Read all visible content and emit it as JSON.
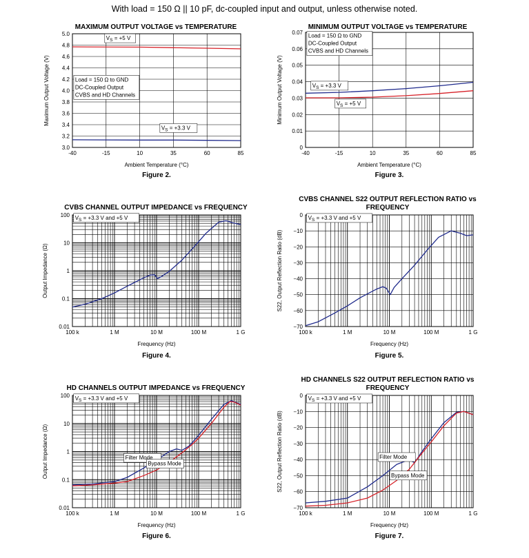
{
  "header": "With load = 150 Ω || 10 pF, dc-coupled input and output, unless otherwise noted.",
  "chart_data": [
    {
      "type": "line",
      "figure": "Figure 2.",
      "title": [
        "MAXIMUM OUTPUT VOLTAGE vs TEMPERATURE"
      ],
      "xlabel": "Ambient Temperature (°C)",
      "ylabel": "Maximum Output Voltage (V)",
      "xscale": "linear",
      "xlim": [
        -40,
        85
      ],
      "xticks": [
        -40,
        -15,
        10,
        35,
        60,
        85
      ],
      "ylim": [
        3.0,
        5.0
      ],
      "yticks": [
        3.0,
        3.2,
        3.4,
        3.6,
        3.8,
        4.0,
        4.2,
        4.4,
        4.6,
        4.8,
        5.0
      ],
      "ytick_labels": [
        "3.0",
        "3.2",
        "3.4",
        "3.6",
        "3.8",
        "4.0",
        "4.2",
        "4.4",
        "4.6",
        "4.8",
        "5.0"
      ],
      "series": [
        {
          "name": "VS = +5 V",
          "color": "#d62027",
          "x": [
            -40,
            10,
            35,
            60,
            85
          ],
          "y": [
            4.77,
            4.765,
            4.755,
            4.745,
            4.735
          ]
        },
        {
          "name": "VS = +3.3 V",
          "color": "#1f2a8c",
          "x": [
            -40,
            10,
            35,
            60,
            85
          ],
          "y": [
            3.135,
            3.13,
            3.13,
            3.125,
            3.12
          ]
        }
      ],
      "annotations": [
        {
          "lines": [
            "VS = +5 V"
          ],
          "x": -15,
          "y": 4.89
        },
        {
          "lines": [
            "Load = 150 Ω to GND",
            "DC-Coupled Output",
            "CVBS and HD Channels"
          ],
          "x": -38,
          "y": 4.16
        },
        {
          "lines": [
            "VS = +3.3 V"
          ],
          "x": 26,
          "y": 3.31
        }
      ]
    },
    {
      "type": "line",
      "figure": "Figure 3.",
      "title": [
        "MINIMUM OUTPUT VOLTAGE vs TEMPERATURE"
      ],
      "xlabel": "Ambient Temperature (°C)",
      "ylabel": "Minimum Output Voltage (V)",
      "xscale": "linear",
      "xlim": [
        -40,
        85
      ],
      "xticks": [
        -40,
        -15,
        10,
        35,
        60,
        85
      ],
      "ylim": [
        0,
        0.07
      ],
      "yticks": [
        0,
        0.01,
        0.02,
        0.03,
        0.04,
        0.05,
        0.06,
        0.07
      ],
      "ytick_labels": [
        "0",
        "0.01",
        "0.02",
        "0.03",
        "0.04",
        "0.05",
        "0.06",
        "0.07"
      ],
      "series": [
        {
          "name": "VS = +3.3 V",
          "color": "#1f2a8c",
          "x": [
            -40,
            -15,
            10,
            35,
            60,
            85
          ],
          "y": [
            0.033,
            0.0335,
            0.0345,
            0.0358,
            0.0375,
            0.0396
          ]
        },
        {
          "name": "VS = +5 V",
          "color": "#d62027",
          "x": [
            -40,
            -15,
            10,
            35,
            60,
            85
          ],
          "y": [
            0.0302,
            0.0302,
            0.0306,
            0.0315,
            0.0328,
            0.0345
          ]
        }
      ],
      "annotations": [
        {
          "lines": [
            "Load = 150 Ω to GND",
            "DC-Coupled Output",
            "CVBS and HD Channels"
          ],
          "x": -38,
          "y": 0.0668
        },
        {
          "lines": [
            "VS = +3.3 V"
          ],
          "x": -35,
          "y": 0.0365
        },
        {
          "lines": [
            "VS = +5 V"
          ],
          "x": -17,
          "y": 0.0256
        }
      ]
    },
    {
      "type": "line",
      "figure": "Figure 4.",
      "title": [
        "CVBS CHANNEL OUTPUT IMPEDANCE vs FREQUENCY"
      ],
      "xlabel": "Frequency (Hz)",
      "ylabel": "Output Impedance (Ω)",
      "xscale": "log",
      "xlim": [
        100000,
        1000000000
      ],
      "xticks": [
        100000,
        1000000,
        10000000,
        100000000,
        1000000000
      ],
      "xtick_labels": [
        "100 k",
        "1 M",
        "10 M",
        "100 M",
        "1 G"
      ],
      "yscale": "log",
      "ylim": [
        0.01,
        100
      ],
      "yticks": [
        0.01,
        0.1,
        1,
        10,
        100
      ],
      "ytick_labels": [
        "0.01",
        "0.1",
        "1",
        "10",
        "100"
      ],
      "series": [
        {
          "name": "VS = +3.3 V and +5 V",
          "color": "#1f2a8c",
          "x": [
            100000,
            200000,
            500000,
            1000000,
            2000000,
            3000000,
            5000000,
            7000000,
            9000000,
            10500000,
            13000000,
            20000000,
            40000000,
            80000000,
            150000000,
            300000000,
            450000000,
            650000000,
            1000000000
          ],
          "y": [
            0.05,
            0.063,
            0.1,
            0.16,
            0.28,
            0.38,
            0.56,
            0.7,
            0.72,
            0.52,
            0.62,
            0.95,
            2.4,
            7.5,
            22,
            55,
            62,
            52,
            45
          ]
        }
      ],
      "annotations": [
        {
          "lines": [
            "VS = +3.3 V and +5 V"
          ],
          "x": 115000,
          "y": 68
        }
      ]
    },
    {
      "type": "line",
      "figure": "Figure 5.",
      "title": [
        "CVBS CHANNEL S22 OUTPUT REFLECTION RATIO vs",
        "FREQUENCY"
      ],
      "xlabel": "Frequency (Hz)",
      "ylabel": "S22, Output Reflection Ratio (dB)",
      "xscale": "log",
      "xlim": [
        100000,
        1000000000
      ],
      "xticks": [
        100000,
        1000000,
        10000000,
        100000000,
        1000000000
      ],
      "xtick_labels": [
        "100 k",
        "1 M",
        "10 M",
        "100 M",
        "1 G"
      ],
      "ylim": [
        -70,
        0
      ],
      "yticks": [
        -70,
        -60,
        -50,
        -40,
        -30,
        -20,
        -10,
        0
      ],
      "ytick_labels": [
        "−70",
        "−60",
        "−50",
        "−40",
        "−30",
        "−20",
        "−10",
        "0"
      ],
      "series": [
        {
          "name": "VS = +3.3 V and +5 V",
          "color": "#1f2a8c",
          "x": [
            100000,
            200000,
            500000,
            1000000,
            2000000,
            3000000,
            5000000,
            7000000,
            8500000,
            10500000,
            13000000,
            20000000,
            40000000,
            80000000,
            150000000,
            300000000,
            500000000,
            700000000,
            1000000000
          ],
          "y": [
            -69.5,
            -67,
            -61.5,
            -57,
            -52,
            -49.5,
            -46.5,
            -45,
            -46,
            -50,
            -45.5,
            -40,
            -31.5,
            -22,
            -14,
            -10,
            -11.5,
            -13,
            -12.5
          ]
        }
      ],
      "annotations": [
        {
          "lines": [
            "VS = +3.3 V and +5 V"
          ],
          "x": 115000,
          "y": -3
        }
      ]
    },
    {
      "type": "line",
      "figure": "Figure 6.",
      "title": [
        "HD CHANNELS OUTPUT IMPEDANCE vs FREQUENCY"
      ],
      "xlabel": "Frequency (Hz)",
      "ylabel": "Output Impedance (Ω)",
      "xscale": "log",
      "xlim": [
        100000,
        1000000000
      ],
      "xticks": [
        100000,
        1000000,
        10000000,
        100000000,
        1000000000
      ],
      "xtick_labels": [
        "100 k",
        "1 M",
        "10 M",
        "100 M",
        "1 G"
      ],
      "yscale": "log",
      "ylim": [
        0.01,
        100
      ],
      "yticks": [
        0.01,
        0.1,
        1,
        10,
        100
      ],
      "ytick_labels": [
        "0.01",
        "0.1",
        "1",
        "10",
        "100"
      ],
      "series": [
        {
          "name": "Filter Mode",
          "color": "#1f2a8c",
          "x": [
            100000,
            300000,
            1000000,
            2000000,
            5000000,
            10000000,
            20000000,
            30000000,
            40000000,
            60000000,
            100000000,
            200000000,
            400000000,
            600000000,
            1000000000
          ],
          "y": [
            0.065,
            0.07,
            0.085,
            0.12,
            0.26,
            0.5,
            1.0,
            1.25,
            1.1,
            1.6,
            3.8,
            14,
            48,
            65,
            48
          ]
        },
        {
          "name": "Bypass Mode",
          "color": "#d62027",
          "x": [
            100000,
            300000,
            1000000,
            2000000,
            5000000,
            10000000,
            20000000,
            40000000,
            70000000,
            100000000,
            200000000,
            400000000,
            550000000,
            700000000,
            1000000000
          ],
          "y": [
            0.06,
            0.065,
            0.075,
            0.085,
            0.14,
            0.22,
            0.42,
            0.9,
            1.8,
            3.0,
            10,
            38,
            60,
            58,
            45
          ]
        }
      ],
      "annotations": [
        {
          "lines": [
            "VS = +3.3 V and +5 V"
          ],
          "x": 115000,
          "y": 68
        },
        {
          "lines": [
            "Filter Mode"
          ],
          "x": 1800000,
          "y": 0.52
        },
        {
          "lines": [
            "Bypass Mode"
          ],
          "x": 6200000,
          "y": 0.32
        }
      ]
    },
    {
      "type": "line",
      "figure": "Figure 7.",
      "title": [
        "HD CHANNELS S22 OUTPUT REFLECTION RATIO vs",
        "FREQUENCY"
      ],
      "xlabel": "Frequency (Hz)",
      "ylabel": "S22, Output Reflection Ratio (dB)",
      "xscale": "log",
      "xlim": [
        100000,
        1000000000
      ],
      "xticks": [
        100000,
        1000000,
        10000000,
        100000000,
        1000000000
      ],
      "xtick_labels": [
        "100 k",
        "1 M",
        "10 M",
        "100 M",
        "1 G"
      ],
      "ylim": [
        -70,
        0
      ],
      "yticks": [
        -70,
        -60,
        -50,
        -40,
        -30,
        -20,
        -10,
        0
      ],
      "ytick_labels": [
        "−70",
        "−60",
        "−50",
        "−40",
        "−30",
        "−20",
        "−10",
        "0"
      ],
      "series": [
        {
          "name": "Filter Mode",
          "color": "#1f2a8c",
          "x": [
            100000,
            300000,
            1000000,
            3000000,
            7000000,
            15000000,
            30000000,
            40000000,
            60000000,
            100000000,
            200000000,
            400000000,
            600000000,
            1000000000
          ],
          "y": [
            -67,
            -66,
            -64,
            -57,
            -50,
            -43,
            -40,
            -42,
            -35,
            -27,
            -17,
            -10.5,
            -10,
            -12
          ]
        },
        {
          "name": "Bypass Mode",
          "color": "#d62027",
          "x": [
            100000,
            300000,
            1000000,
            3000000,
            7000000,
            15000000,
            30000000,
            60000000,
            100000000,
            200000000,
            400000000,
            600000000,
            1000000000
          ],
          "y": [
            -69,
            -68.5,
            -67,
            -64,
            -59,
            -53,
            -46,
            -36,
            -29,
            -19,
            -11,
            -10,
            -12
          ]
        }
      ],
      "annotations": [
        {
          "lines": [
            "VS = +3.3 V and +5 V"
          ],
          "x": 115000,
          "y": -3
        },
        {
          "lines": [
            "Filter Mode"
          ],
          "x": 5800000,
          "y": -39.5
        },
        {
          "lines": [
            "Bypass Mode"
          ],
          "x": 11000000,
          "y": -51
        }
      ]
    }
  ]
}
